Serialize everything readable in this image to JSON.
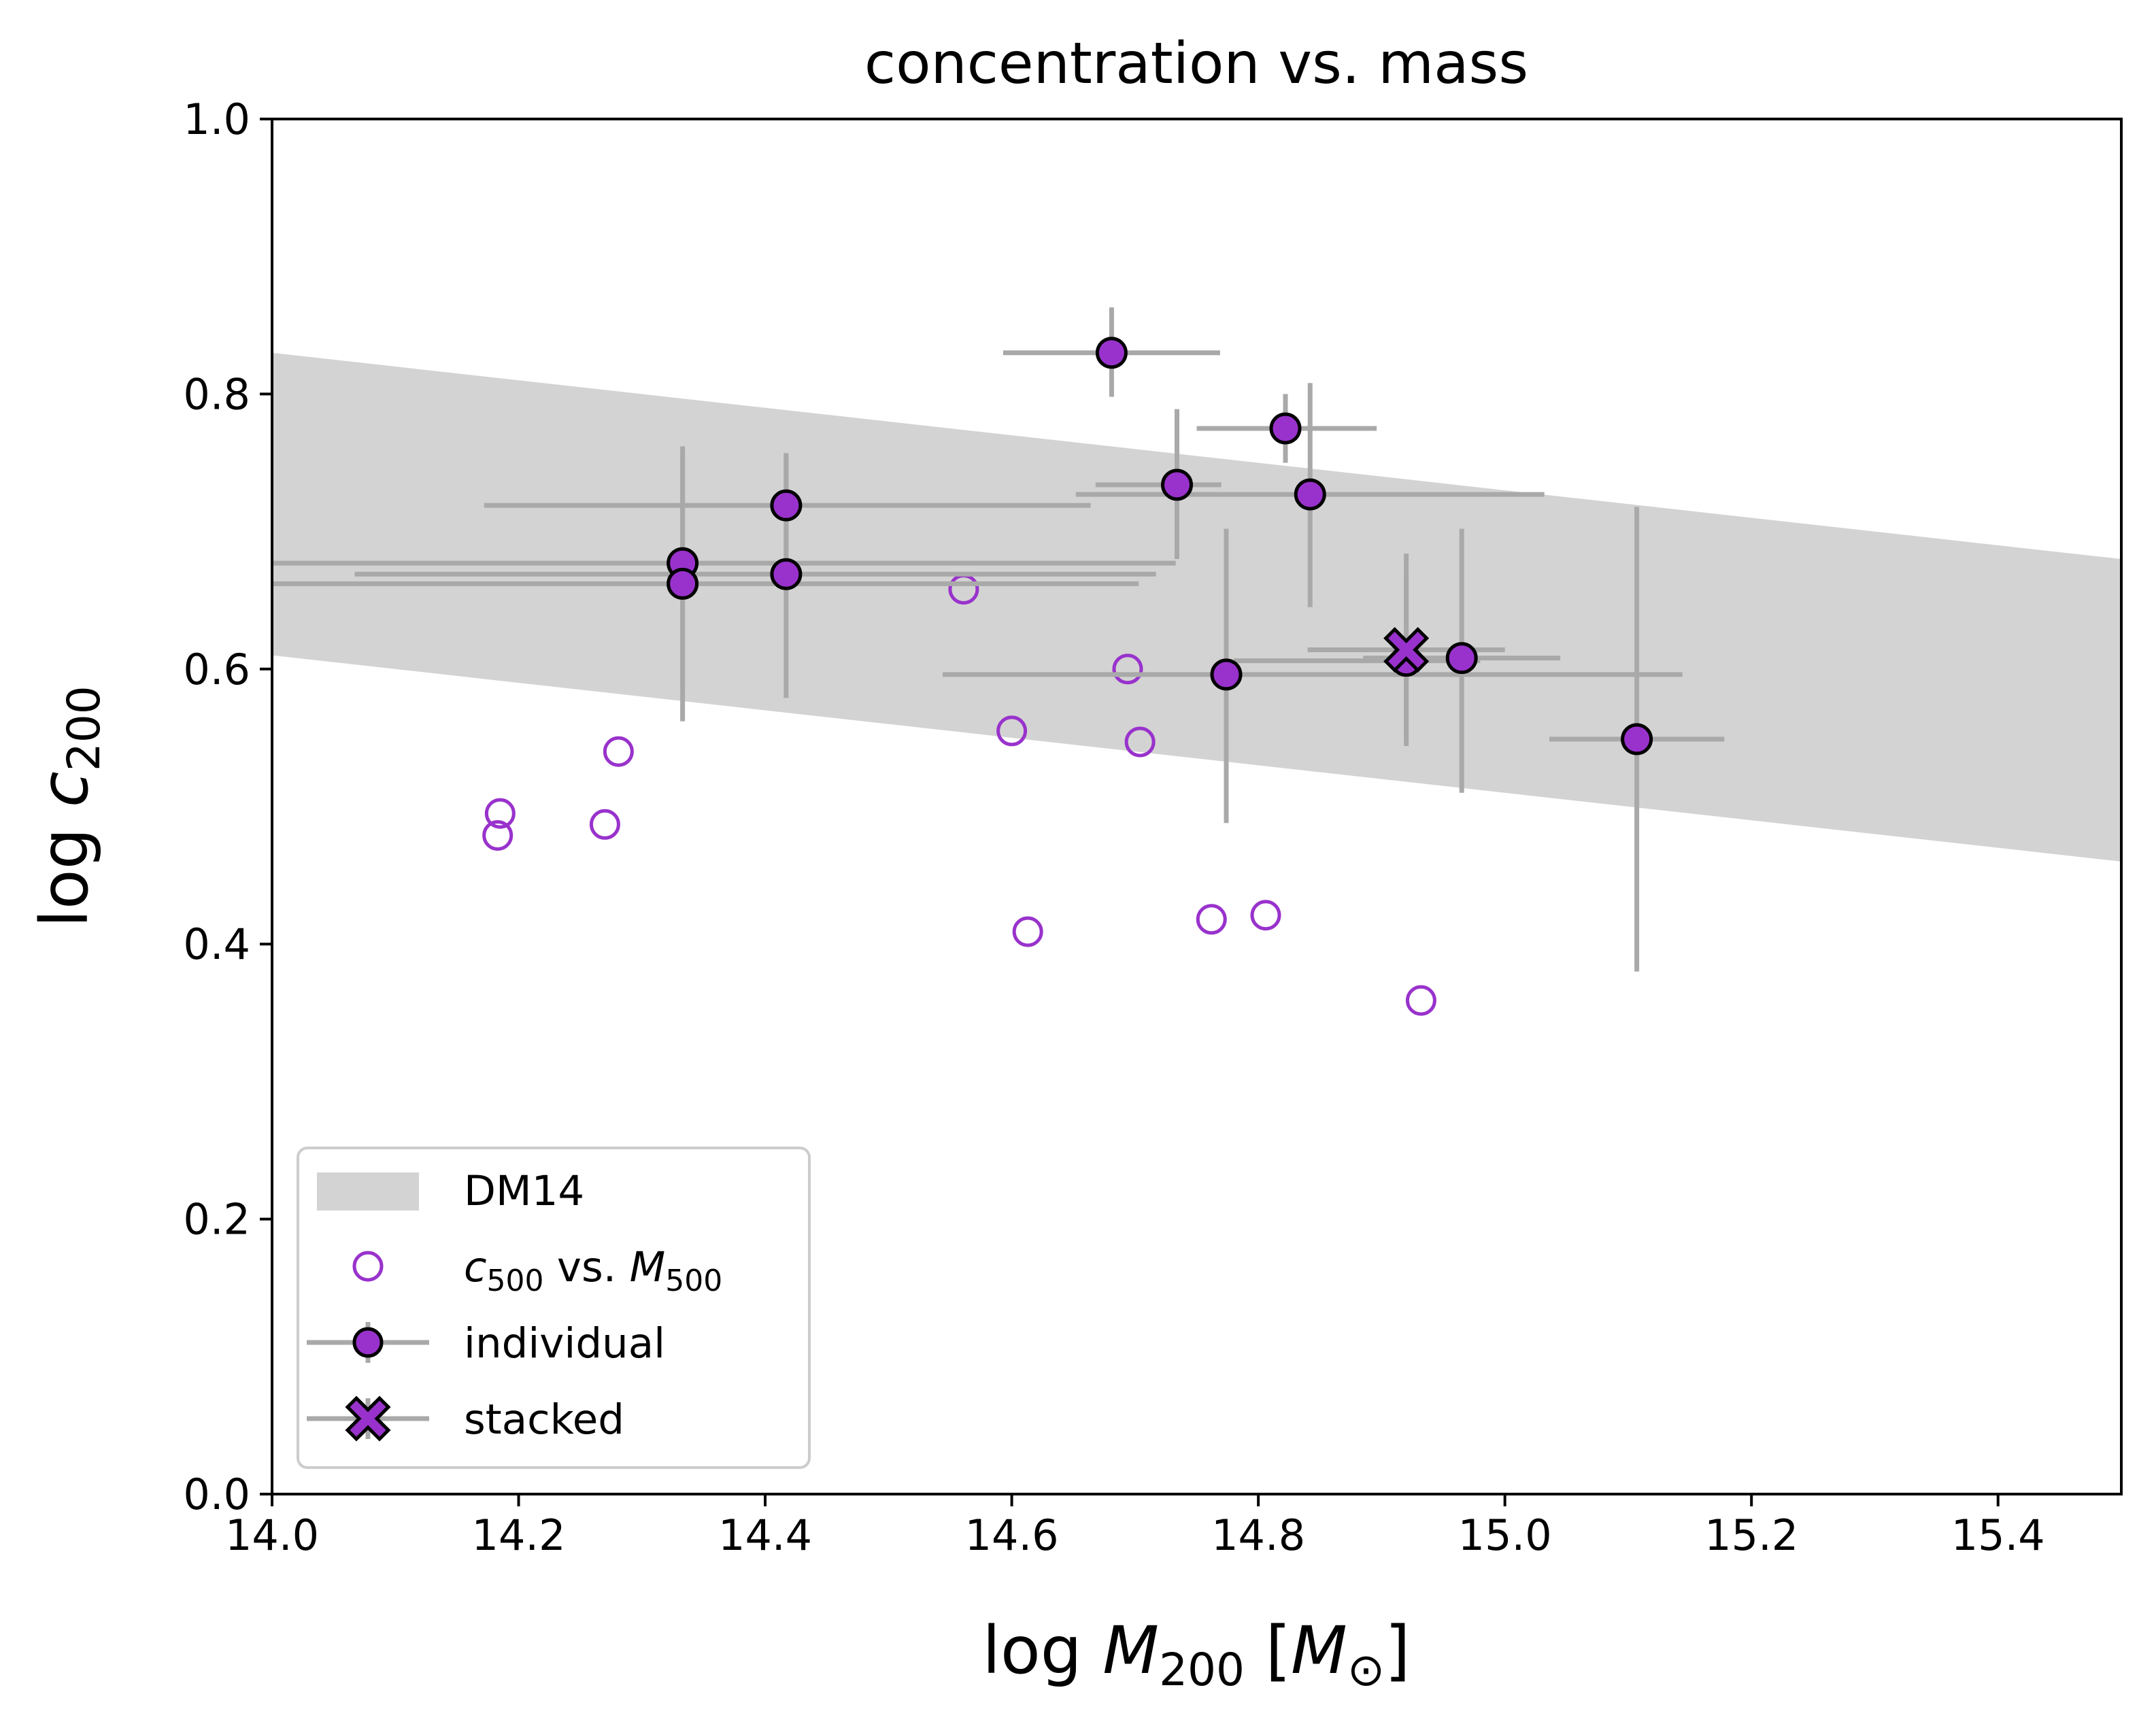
{
  "chart_data": {
    "type": "scatter",
    "title": "concentration vs. mass",
    "xlabel": {
      "prefix": "log ",
      "var": "M",
      "sub": "200",
      "bracket_open": " [",
      "unit": "M",
      "unit_sub": "⊙",
      "bracket_close": "]"
    },
    "ylabel": {
      "prefix": "log ",
      "var": "c",
      "sub": "200"
    },
    "xlim": [
      14.0,
      15.5
    ],
    "ylim": [
      0.0,
      1.0
    ],
    "xticks": [
      14.0,
      14.2,
      14.4,
      14.6,
      14.8,
      15.0,
      15.2,
      15.4
    ],
    "xtick_labels": [
      "14.0",
      "14.2",
      "14.4",
      "14.6",
      "14.8",
      "15.0",
      "15.2",
      "15.4"
    ],
    "yticks": [
      0.0,
      0.2,
      0.4,
      0.6,
      0.8,
      1.0
    ],
    "ytick_labels": [
      "0.0",
      "0.2",
      "0.4",
      "0.6",
      "0.8",
      "1.0"
    ],
    "grid": false,
    "legend_position": "lower-left",
    "colors": {
      "purple": "#9932CC",
      "error": "#A9A9A9",
      "band": "#D3D3D3"
    },
    "band": {
      "name": "DM14",
      "x": [
        14.0,
        15.5
      ],
      "upper": [
        0.83,
        0.68
      ],
      "lower": [
        0.61,
        0.46
      ]
    },
    "open_series": {
      "name_parts": {
        "c": "c",
        "c_sub": "500",
        "mid": " vs. ",
        "m": "M",
        "m_sub": "500"
      },
      "points": [
        {
          "x": 14.185,
          "y": 0.495
        },
        {
          "x": 14.183,
          "y": 0.479
        },
        {
          "x": 14.281,
          "y": 0.54
        },
        {
          "x": 14.27,
          "y": 0.487
        },
        {
          "x": 14.561,
          "y": 0.658
        },
        {
          "x": 14.6,
          "y": 0.555
        },
        {
          "x": 14.613,
          "y": 0.409
        },
        {
          "x": 14.694,
          "y": 0.6
        },
        {
          "x": 14.704,
          "y": 0.547
        },
        {
          "x": 14.762,
          "y": 0.418
        },
        {
          "x": 14.806,
          "y": 0.421
        },
        {
          "x": 14.932,
          "y": 0.359
        }
      ]
    },
    "individual": {
      "name": "individual",
      "points": [
        {
          "x": 14.333,
          "y": 0.677,
          "xerr": [
            0.333,
            0.4
          ],
          "yerr": [
            0.09,
            0.08
          ]
        },
        {
          "x": 14.333,
          "y": 0.662,
          "xerr": [
            0.333,
            0.37
          ],
          "yerr": [
            0.1,
            0.1
          ]
        },
        {
          "x": 14.417,
          "y": 0.719,
          "xerr": [
            0.245,
            0.247
          ],
          "yerr": [
            0.04,
            0.038
          ]
        },
        {
          "x": 14.417,
          "y": 0.669,
          "xerr": [
            0.35,
            0.3
          ],
          "yerr": [
            0.09,
            0.088
          ]
        },
        {
          "x": 14.681,
          "y": 0.83,
          "xerr": [
            0.088,
            0.088
          ],
          "yerr": [
            0.032,
            0.033
          ]
        },
        {
          "x": 14.734,
          "y": 0.734,
          "xerr": [
            0.066,
            0.036
          ],
          "yerr": [
            0.054,
            0.055
          ]
        },
        {
          "x": 14.774,
          "y": 0.596,
          "xerr": [
            0.23,
            0.37
          ],
          "yerr": [
            0.108,
            0.106
          ]
        },
        {
          "x": 14.822,
          "y": 0.775,
          "xerr": [
            0.072,
            0.074
          ],
          "yerr": [
            0.025,
            0.025
          ]
        },
        {
          "x": 14.842,
          "y": 0.727,
          "xerr": [
            0.19,
            0.19
          ],
          "yerr": [
            0.082,
            0.081
          ]
        },
        {
          "x": 14.92,
          "y": 0.606,
          "xerr": [
            0.14,
            0.06
          ],
          "yerr": [
            0.062,
            0.061
          ]
        },
        {
          "x": 14.965,
          "y": 0.608,
          "xerr": [
            0.08,
            0.08
          ],
          "yerr": [
            0.098,
            0.094
          ]
        },
        {
          "x": 15.107,
          "y": 0.549,
          "xerr": [
            0.071,
            0.071
          ],
          "yerr": [
            0.169,
            0.169
          ]
        }
      ]
    },
    "stacked": {
      "name": "stacked",
      "points": [
        {
          "x": 14.92,
          "y": 0.614,
          "xerr": [
            0.08,
            0.08
          ],
          "yerr": [
            0.065,
            0.07
          ]
        }
      ]
    }
  }
}
